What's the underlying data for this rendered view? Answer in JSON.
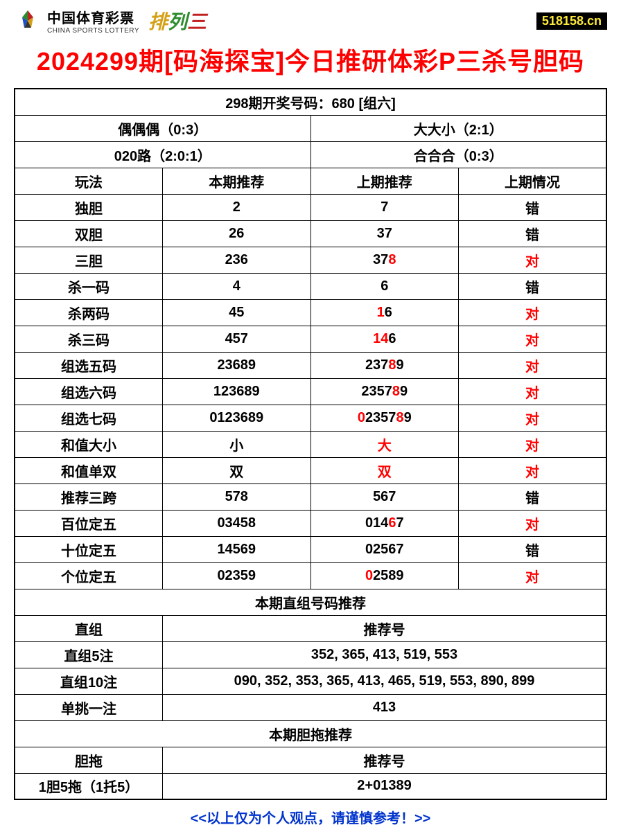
{
  "header": {
    "logo_cn": "中国体育彩票",
    "logo_en": "CHINA SPORTS LOTTERY",
    "pailiesan_chars": [
      "排",
      "列",
      "三"
    ],
    "site": "518158.cn"
  },
  "title": "2024299期[码海探宝]今日推研体彩P三杀号胆码",
  "draw_header": "298期开奖号码：680 [组六]",
  "stat_rows": [
    {
      "left": "偶偶偶（0:3）",
      "right": "大大小（2:1）"
    },
    {
      "left": "020路（2:0:1）",
      "right": "合合合（0:3）"
    }
  ],
  "columns": [
    "玩法",
    "本期推荐",
    "上期推荐",
    "上期情况"
  ],
  "rows": [
    {
      "name": "独胆",
      "cur": "2",
      "prev": [
        {
          "t": "7",
          "hl": false
        }
      ],
      "res": "错",
      "res_hl": false
    },
    {
      "name": "双胆",
      "cur": "26",
      "prev": [
        {
          "t": "37",
          "hl": false
        }
      ],
      "res": "错",
      "res_hl": false
    },
    {
      "name": "三胆",
      "cur": "236",
      "prev": [
        {
          "t": "37",
          "hl": false
        },
        {
          "t": "8",
          "hl": true
        }
      ],
      "res": "对",
      "res_hl": true
    },
    {
      "name": "杀一码",
      "cur": "4",
      "prev": [
        {
          "t": "6",
          "hl": false
        }
      ],
      "res": "错",
      "res_hl": false
    },
    {
      "name": "杀两码",
      "cur": "45",
      "prev": [
        {
          "t": "1",
          "hl": true
        },
        {
          "t": "6",
          "hl": false
        }
      ],
      "res": "对",
      "res_hl": true
    },
    {
      "name": "杀三码",
      "cur": "457",
      "prev": [
        {
          "t": "1",
          "hl": true
        },
        {
          "t": "4",
          "hl": true
        },
        {
          "t": "6",
          "hl": false
        }
      ],
      "res": "对",
      "res_hl": true
    },
    {
      "name": "组选五码",
      "cur": "23689",
      "prev": [
        {
          "t": "237",
          "hl": false
        },
        {
          "t": "8",
          "hl": true
        },
        {
          "t": "9",
          "hl": false
        }
      ],
      "res": "对",
      "res_hl": true
    },
    {
      "name": "组选六码",
      "cur": "123689",
      "prev": [
        {
          "t": "2357",
          "hl": false
        },
        {
          "t": "8",
          "hl": true
        },
        {
          "t": "9",
          "hl": false
        }
      ],
      "res": "对",
      "res_hl": true
    },
    {
      "name": "组选七码",
      "cur": "0123689",
      "prev": [
        {
          "t": "0",
          "hl": true
        },
        {
          "t": "2357",
          "hl": false
        },
        {
          "t": "8",
          "hl": true
        },
        {
          "t": "9",
          "hl": false
        }
      ],
      "res": "对",
      "res_hl": true
    },
    {
      "name": "和值大小",
      "cur": "小",
      "prev": [
        {
          "t": "大",
          "hl": true
        }
      ],
      "res": "对",
      "res_hl": true
    },
    {
      "name": "和值单双",
      "cur": "双",
      "prev": [
        {
          "t": "双",
          "hl": true
        }
      ],
      "res": "对",
      "res_hl": true
    },
    {
      "name": "推荐三跨",
      "cur": "578",
      "prev": [
        {
          "t": "567",
          "hl": false
        }
      ],
      "res": "错",
      "res_hl": false
    },
    {
      "name": "百位定五",
      "cur": "03458",
      "prev": [
        {
          "t": "014",
          "hl": false
        },
        {
          "t": "6",
          "hl": true
        },
        {
          "t": "7",
          "hl": false
        }
      ],
      "res": "对",
      "res_hl": true
    },
    {
      "name": "十位定五",
      "cur": "14569",
      "prev": [
        {
          "t": "02567",
          "hl": false
        }
      ],
      "res": "错",
      "res_hl": false
    },
    {
      "name": "个位定五",
      "cur": "02359",
      "prev": [
        {
          "t": "0",
          "hl": true
        },
        {
          "t": "2589",
          "hl": false
        }
      ],
      "res": "对",
      "res_hl": true
    }
  ],
  "zhizu_header": "本期直组号码推荐",
  "zhizu_cols": [
    "直组",
    "推荐号"
  ],
  "zhizu_rows": [
    {
      "name": "直组5注",
      "val": "352, 365, 413, 519, 553"
    },
    {
      "name": "直组10注",
      "val": "090, 352, 353, 365, 413, 465, 519, 553, 890, 899"
    },
    {
      "name": "单挑一注",
      "val": "413"
    }
  ],
  "dantuo_header": "本期胆拖推荐",
  "dantuo_cols": [
    "胆拖",
    "推荐号"
  ],
  "dantuo_rows": [
    {
      "name": "1胆5拖（1托5）",
      "val": "2+01389"
    }
  ],
  "footer": "<<以上仅为个人观点，请谨慎参考！>>",
  "colors": {
    "title": "#ff0000",
    "highlight": "#ff0000",
    "border": "#000000",
    "footer": "#0033cc",
    "badge_bg": "#000000",
    "badge_fg": "#ffeb3b"
  }
}
